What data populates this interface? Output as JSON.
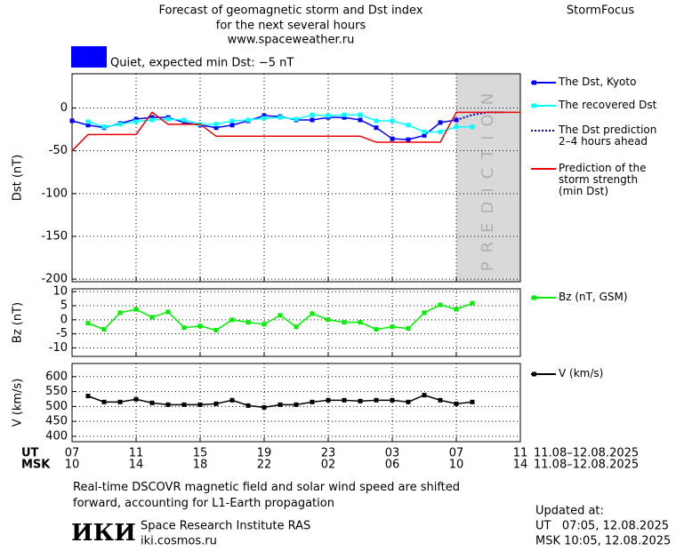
{
  "header": {
    "title": "Forecast of geomagnetic storm and Dst index",
    "subtitle": "for the next several hours",
    "url": "www.spaceweather.ru",
    "brand": "StormFocus",
    "status": "Quiet, expected min Dst: −5 nT",
    "status_color": "#0000ff"
  },
  "time_axis": {
    "xlim": [
      7,
      35
    ],
    "ut_label": "UT",
    "msk_label": "MSK",
    "ut_ticks": [
      {
        "value": 7,
        "label": "07"
      },
      {
        "value": 11,
        "label": "11"
      },
      {
        "value": 15,
        "label": "15"
      },
      {
        "value": 19,
        "label": "19"
      },
      {
        "value": 23,
        "label": "23"
      },
      {
        "value": 27,
        "label": "03"
      },
      {
        "value": 31,
        "label": "07"
      },
      {
        "value": 35,
        "label": "11"
      }
    ],
    "msk_ticks": [
      {
        "value": 7,
        "label": "10"
      },
      {
        "value": 11,
        "label": "14"
      },
      {
        "value": 15,
        "label": "18"
      },
      {
        "value": 19,
        "label": "22"
      },
      {
        "value": 23,
        "label": "02"
      },
      {
        "value": 27,
        "label": "06"
      },
      {
        "value": 31,
        "label": "10"
      },
      {
        "value": 35,
        "label": "14"
      }
    ],
    "ut_dates": "11.08–12.08.2025",
    "msk_dates": "11.08–12.08.2025"
  },
  "chart_data": [
    {
      "type": "line",
      "ylabel": "Dst (nT)",
      "ylim": [
        -203,
        40
      ],
      "yticks": [
        0,
        -50,
        -100,
        -150,
        -200
      ],
      "grid": true,
      "prediction_region": {
        "x": [
          31,
          35
        ],
        "label": "PREDICTION",
        "color": "#d9d9d9"
      },
      "series": [
        {
          "name": "The Dst, Kyoto",
          "color": "#0000ff",
          "marker": "square",
          "style": "solid",
          "x": [
            7,
            8,
            9,
            10,
            11,
            12,
            13,
            14,
            15,
            16,
            17,
            18,
            19,
            20,
            21,
            22,
            23,
            24,
            25,
            26,
            27,
            28,
            29,
            30,
            31
          ],
          "values": [
            -15,
            -20,
            -23,
            -18,
            -13,
            -11,
            -11,
            -17,
            -20,
            -23,
            -20,
            -15,
            -9,
            -10,
            -14,
            -14,
            -11,
            -11,
            -14,
            -23,
            -36,
            -37,
            -32,
            -17,
            -14
          ]
        },
        {
          "name": "The recovered Dst",
          "color": "#00ffff",
          "marker": "square",
          "style": "solid",
          "x": [
            8,
            9,
            10,
            11,
            12,
            13,
            14,
            15,
            16,
            17,
            18,
            19,
            20,
            21,
            22,
            23,
            24,
            25,
            26,
            27,
            28,
            29,
            30,
            31,
            32
          ],
          "values": [
            -16,
            -22,
            -19,
            -16,
            -14,
            -13,
            -14,
            -19,
            -19,
            -15,
            -14,
            -12,
            -11,
            -13,
            -8,
            -9,
            -8,
            -8,
            -15,
            -15,
            -20,
            -28,
            -28,
            -22,
            -22
          ]
        },
        {
          "name": "The Dst prediction\n2–4 hours ahead",
          "color": "#0000cc",
          "marker": "none",
          "style": "dotted",
          "x": [
            31,
            32,
            33,
            34
          ],
          "values": [
            -14,
            -8,
            -5,
            -5
          ]
        },
        {
          "name": "Prediction of the\nstorm strength\n(min Dst)",
          "color": "#ee0000",
          "marker": "none",
          "style": "solid",
          "x": [
            7,
            8,
            11,
            12,
            13,
            15,
            16,
            25,
            26,
            30,
            31,
            35
          ],
          "values": [
            -50,
            -31,
            -31,
            -5,
            -19,
            -19,
            -33,
            -33,
            -40,
            -40,
            -5,
            -5
          ]
        }
      ]
    },
    {
      "type": "line",
      "ylabel": "Bz (nT)",
      "ylim": [
        -13,
        11
      ],
      "yticks": [
        10,
        5,
        0,
        -5,
        -10
      ],
      "grid": true,
      "series": [
        {
          "name": "Bz (nT, GSM)",
          "color": "#00ee00",
          "marker": "square",
          "style": "solid",
          "x": [
            8,
            9,
            10,
            11,
            12,
            13,
            14,
            15,
            16,
            17,
            18,
            19,
            20,
            21,
            22,
            23,
            24,
            25,
            26,
            27,
            28,
            29,
            30,
            31,
            32
          ],
          "values": [
            -1.2,
            -3.4,
            2.5,
            3.7,
            0.9,
            2.8,
            -2.8,
            -2.2,
            -3.7,
            0,
            -0.9,
            -1.6,
            1.6,
            -2.5,
            2.2,
            0,
            -0.9,
            -0.9,
            -3.4,
            -2.5,
            -3.1,
            2.5,
            5.3,
            3.7,
            5.9
          ]
        }
      ]
    },
    {
      "type": "line",
      "ylabel": "V (km/s)",
      "ylim": [
        382,
        644
      ],
      "yticks": [
        600,
        550,
        500,
        450,
        400
      ],
      "grid": true,
      "series": [
        {
          "name": "V (km/s)",
          "color": "#000000",
          "marker": "square",
          "style": "solid",
          "x": [
            8,
            9,
            10,
            11,
            12,
            13,
            14,
            15,
            16,
            17,
            18,
            19,
            20,
            21,
            22,
            23,
            24,
            25,
            26,
            27,
            28,
            29,
            30,
            31,
            32
          ],
          "values": [
            535,
            515,
            515,
            524,
            512,
            506,
            506,
            506,
            509,
            521,
            503,
            497,
            506,
            506,
            515,
            521,
            521,
            518,
            521,
            521,
            515,
            538,
            521,
            509,
            515
          ]
        }
      ]
    }
  ],
  "footer": {
    "note": "Real-time DSCOVR magnetic field and solar wind speed are shifted\nforward, accounting for L1-Earth propagation",
    "logo": "ИКИ",
    "institute": "Space Research Institute RAS",
    "site": "iki.cosmos.ru",
    "updated_label": "Updated at:",
    "updated_ut": "UT   07:05, 12.08.2025",
    "updated_msk": "MSK 10:05, 12.08.2025"
  }
}
